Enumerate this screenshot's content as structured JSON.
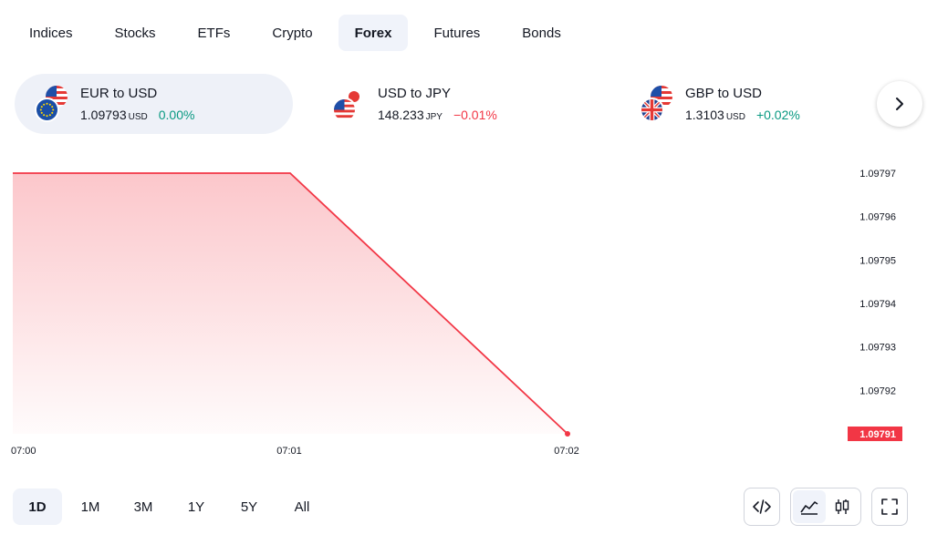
{
  "tabs": [
    {
      "label": "Indices",
      "active": false
    },
    {
      "label": "Stocks",
      "active": false
    },
    {
      "label": "ETFs",
      "active": false
    },
    {
      "label": "Crypto",
      "active": false
    },
    {
      "label": "Forex",
      "active": true
    },
    {
      "label": "Futures",
      "active": false
    },
    {
      "label": "Bonds",
      "active": false
    }
  ],
  "cards": [
    {
      "pair": "EUR to USD",
      "price": "1.09793",
      "currency": "USD",
      "change": "0.00%",
      "direction": "pos",
      "flags": [
        "us-flag-icon",
        "eu-flag-icon"
      ]
    },
    {
      "pair": "USD to JPY",
      "price": "148.233",
      "currency": "JPY",
      "change": "−0.01%",
      "direction": "neg",
      "flags": [
        "jp-flag-icon",
        "us-flag-icon"
      ]
    },
    {
      "pair": "GBP to USD",
      "price": "1.3103",
      "currency": "USD",
      "change": "+0.02%",
      "direction": "pos",
      "flags": [
        "us-flag-icon",
        "uk-flag-icon"
      ]
    }
  ],
  "chart_data": {
    "type": "area",
    "x": [
      "07:00",
      "07:01",
      "07:02"
    ],
    "values": [
      1.09797,
      1.09797,
      1.09791
    ],
    "x_ticks": [
      "07:00",
      "07:01",
      "07:02"
    ],
    "y_ticks": [
      "1.09797",
      "1.09796",
      "1.09795",
      "1.09794",
      "1.09793",
      "1.09792"
    ],
    "last_value_label": "1.09791",
    "ylim": [
      1.09791,
      1.098
    ],
    "color": "#f23645"
  },
  "ranges": [
    {
      "label": "1D",
      "active": true
    },
    {
      "label": "1M",
      "active": false
    },
    {
      "label": "3M",
      "active": false
    },
    {
      "label": "1Y",
      "active": false
    },
    {
      "label": "5Y",
      "active": false
    },
    {
      "label": "All",
      "active": false
    }
  ],
  "tools": {
    "embed_icon": "code-icon",
    "area_icon": "area-chart-icon",
    "candle_icon": "candlestick-icon",
    "fullscreen_icon": "fullscreen-icon"
  }
}
